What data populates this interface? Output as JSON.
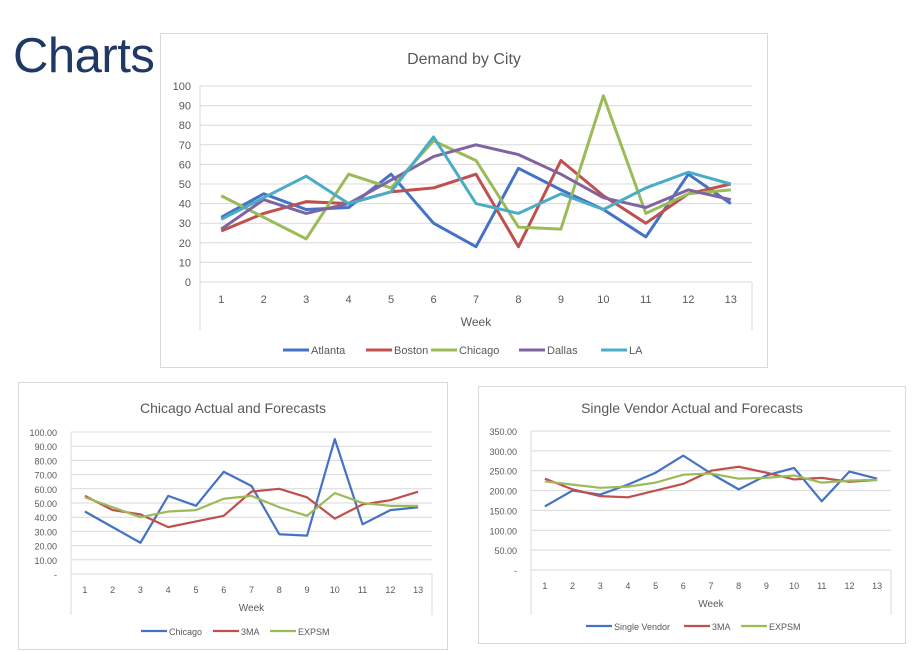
{
  "page": {
    "title": "Charts"
  },
  "colors": {
    "blue": "#4472c4",
    "red": "#c0504d",
    "green": "#9bbb59",
    "purple": "#8064a2",
    "cyan": "#4bacc6"
  },
  "chart_data": [
    {
      "type": "line",
      "title": "Demand by City",
      "xlabel": "Week",
      "ylabel": "",
      "ylim": [
        0,
        100
      ],
      "yticks": [
        "0",
        "10",
        "20",
        "30",
        "40",
        "50",
        "60",
        "70",
        "80",
        "90",
        "100"
      ],
      "grid": true,
      "legend": "bottom",
      "categories": [
        "1",
        "2",
        "3",
        "4",
        "5",
        "6",
        "7",
        "8",
        "9",
        "10",
        "11",
        "12",
        "13"
      ],
      "series": [
        {
          "name": "Atlanta",
          "color": "#4472c4",
          "values": [
            33,
            45,
            37,
            38,
            55,
            30,
            18,
            58,
            47,
            37,
            23,
            55,
            40
          ]
        },
        {
          "name": "Boston",
          "color": "#c0504d",
          "values": [
            26,
            35,
            41,
            40,
            46,
            48,
            55,
            18,
            62,
            44,
            30,
            45,
            50
          ]
        },
        {
          "name": "Chicago",
          "color": "#9bbb59",
          "values": [
            44,
            33,
            22,
            55,
            48,
            72,
            62,
            28,
            27,
            95,
            35,
            45,
            47
          ]
        },
        {
          "name": "Dallas",
          "color": "#8064a2",
          "values": [
            27,
            42,
            35,
            40,
            52,
            64,
            70,
            65,
            55,
            43,
            38,
            47,
            42
          ]
        },
        {
          "name": "LA",
          "color": "#4bacc6",
          "values": [
            32,
            43,
            54,
            40,
            46,
            74,
            40,
            35,
            45,
            37,
            48,
            56,
            50
          ]
        }
      ]
    },
    {
      "type": "line",
      "title": "Chicago Actual and Forecasts",
      "xlabel": "Week",
      "ylabel": "",
      "ylim": [
        0,
        100
      ],
      "yticks": [
        "-",
        "10.00",
        "20.00",
        "30.00",
        "40.00",
        "50.00",
        "60.00",
        "70.00",
        "80.00",
        "90.00",
        "100.00"
      ],
      "grid": true,
      "legend": "bottom",
      "categories": [
        "1",
        "2",
        "3",
        "4",
        "5",
        "6",
        "7",
        "8",
        "9",
        "10",
        "11",
        "12",
        "13"
      ],
      "series": [
        {
          "name": "Chicago",
          "color": "#4472c4",
          "values": [
            44,
            33,
            22,
            55,
            48,
            72,
            62,
            28,
            27,
            95,
            35,
            45,
            47
          ]
        },
        {
          "name": "3MA",
          "color": "#c0504d",
          "values": [
            55,
            45,
            42,
            33,
            37,
            41,
            58,
            60,
            54,
            39,
            49,
            52,
            58
          ]
        },
        {
          "name": "EXPSM",
          "color": "#9bbb59",
          "values": [
            54,
            47,
            40,
            44,
            45,
            53,
            55,
            47,
            41,
            57,
            50,
            48,
            48
          ]
        }
      ]
    },
    {
      "type": "line",
      "title": "Single Vendor Actual and Forecasts",
      "xlabel": "Week",
      "ylabel": "",
      "ylim": [
        0,
        350
      ],
      "yticks": [
        "-",
        "50.00",
        "100.00",
        "150.00",
        "200.00",
        "250.00",
        "300.00",
        "350.00"
      ],
      "grid": true,
      "legend": "bottom",
      "categories": [
        "1",
        "2",
        "3",
        "4",
        "5",
        "6",
        "7",
        "8",
        "9",
        "10",
        "11",
        "12",
        "13"
      ],
      "series": [
        {
          "name": "Single Vendor",
          "color": "#4472c4",
          "values": [
            160,
            200,
            190,
            215,
            245,
            288,
            243,
            203,
            238,
            257,
            173,
            248,
            230
          ]
        },
        {
          "name": "3MA",
          "color": "#c0504d",
          "values": [
            230,
            203,
            186,
            183,
            200,
            217,
            250,
            260,
            245,
            228,
            232,
            222,
            227
          ]
        },
        {
          "name": "EXPSM",
          "color": "#9bbb59",
          "values": [
            223,
            215,
            207,
            210,
            220,
            240,
            243,
            230,
            232,
            238,
            220,
            225,
            227
          ]
        }
      ]
    }
  ]
}
